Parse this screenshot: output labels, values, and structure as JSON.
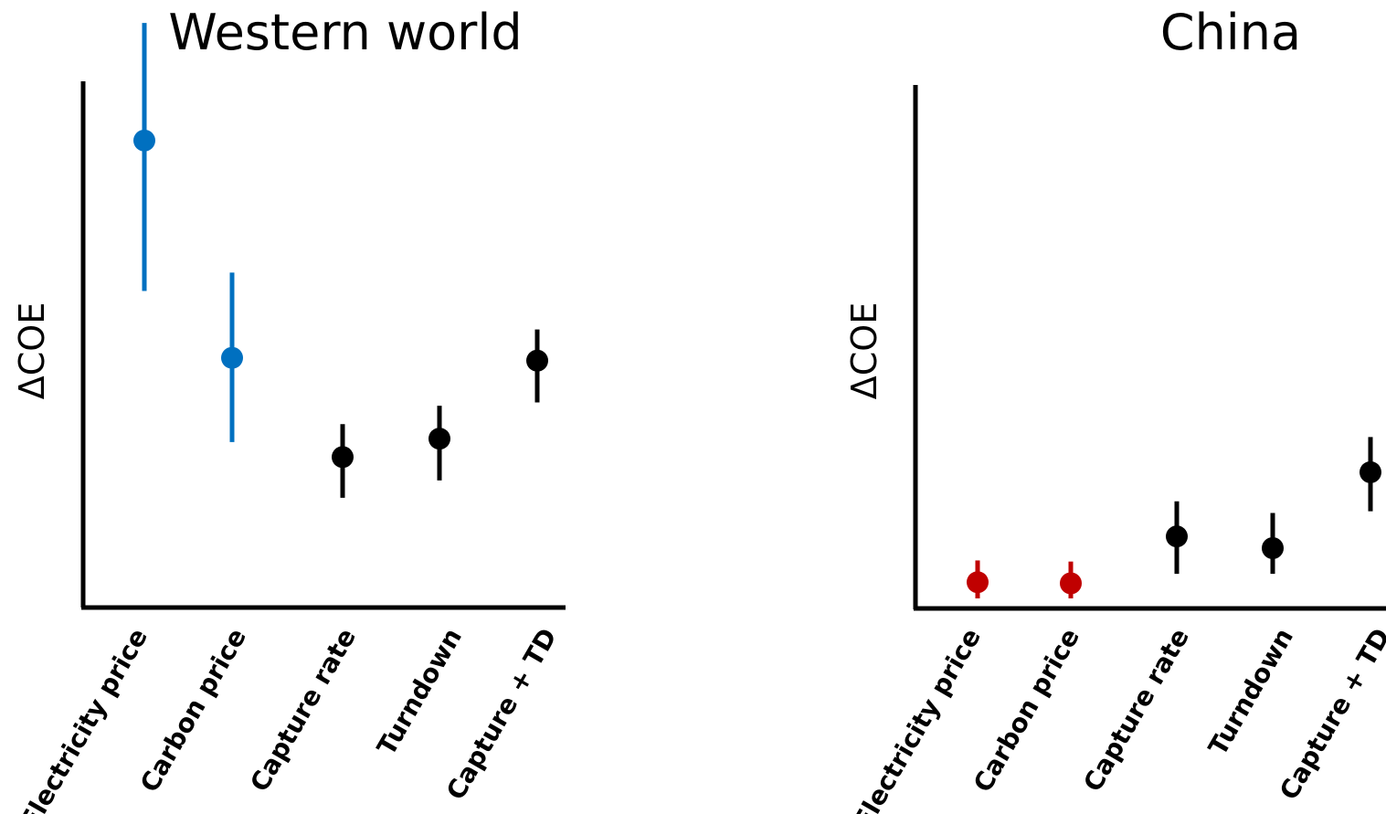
{
  "chart_data": [
    {
      "type": "scatter",
      "title": "Western world",
      "ylabel": "ΔCOE",
      "xlabel": "",
      "ylim": [
        0,
        100
      ],
      "categories": [
        "Electricity price",
        "Carbon price",
        "Capture rate",
        "Turndown",
        "Capture + TD"
      ],
      "values": [
        83.8,
        44.8,
        27.0,
        30.3,
        44.3
      ],
      "error_low": [
        56.8,
        29.7,
        19.7,
        22.8,
        36.8
      ],
      "error_high": [
        104.9,
        60.1,
        32.9,
        36.2,
        49.9
      ],
      "point_colors": [
        "#0070C0",
        "#0070C0",
        "#000000",
        "#000000",
        "#000000"
      ]
    },
    {
      "type": "scatter",
      "title": "China",
      "ylabel": "ΔCOE",
      "xlabel": "",
      "ylim": [
        0,
        100
      ],
      "categories": [
        "Electricity price",
        "Carbon price",
        "Capture rate",
        "Turndown",
        "Capture + TD"
      ],
      "values": [
        4.7,
        4.5,
        12.9,
        10.8,
        24.4
      ],
      "error_low": [
        1.8,
        1.8,
        6.2,
        6.2,
        17.4
      ],
      "error_high": [
        8.6,
        8.4,
        19.2,
        17.1,
        30.7
      ],
      "point_colors": [
        "#C00000",
        "#C00000",
        "#000000",
        "#000000",
        "#000000"
      ]
    }
  ]
}
